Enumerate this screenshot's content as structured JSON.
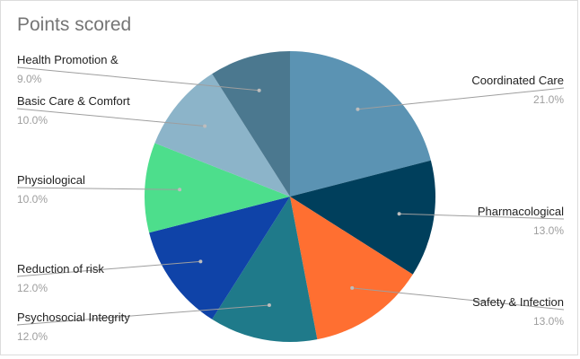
{
  "chart_data": {
    "type": "pie",
    "title": "Points scored",
    "slices": [
      {
        "label": "Coordinated Care",
        "value": 21.0,
        "pct_label": "21.0%",
        "color": "#5b93b3"
      },
      {
        "label": "Pharmacological",
        "value": 13.0,
        "pct_label": "13.0%",
        "color": "#003f5c"
      },
      {
        "label": "Safety & Infection",
        "value": 13.0,
        "pct_label": "13.0%",
        "color": "#ff6f31"
      },
      {
        "label": "Psychosocial Integrity",
        "value": 12.0,
        "pct_label": "12.0%",
        "color": "#1f7a8a"
      },
      {
        "label": "Reduction of risk",
        "value": 12.0,
        "pct_label": "12.0%",
        "color": "#0f43a8"
      },
      {
        "label": "Physiological",
        "value": 10.0,
        "pct_label": "10.0%",
        "color": "#4dde8c"
      },
      {
        "label": "Basic Care & Comfort",
        "value": 10.0,
        "pct_label": "10.0%",
        "color": "#8cb4c9"
      },
      {
        "label": "Health Promotion &",
        "value": 9.0,
        "pct_label": "9.0%",
        "color": "#4b788f"
      }
    ],
    "legend": "none"
  }
}
